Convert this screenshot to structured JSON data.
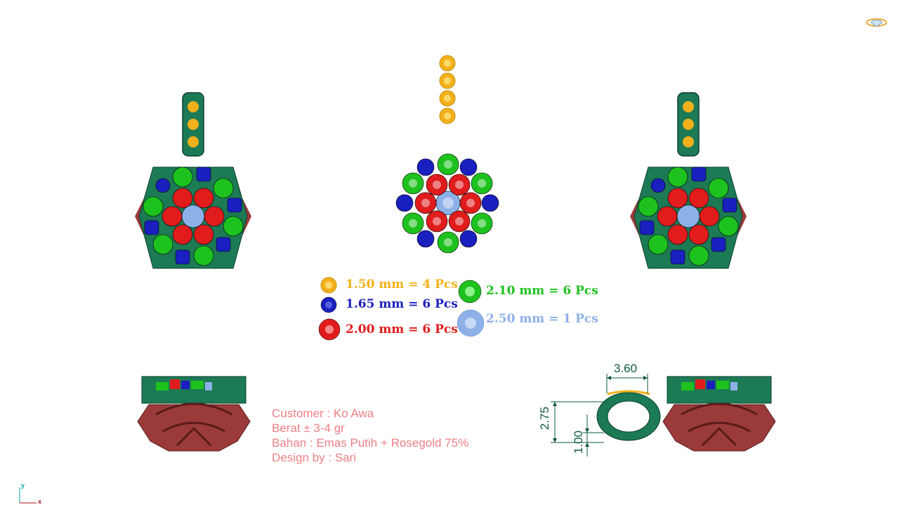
{
  "legend": [
    {
      "label": "1.50 mm = 4 Pcs",
      "color": "#f2b11c",
      "stone": "gold-stone"
    },
    {
      "label": "1.65 mm = 6 Pcs",
      "color": "#1a1fbf",
      "stone": "blue-stone"
    },
    {
      "label": "2.00 mm = 6 Pcs",
      "color": "#e01c1c",
      "stone": "red-stone"
    },
    {
      "label": "2.10 mm = 6 Pcs",
      "color": "#1ec21e",
      "stone": "green-stone"
    },
    {
      "label": "2.50 mm = 1 Pcs",
      "color": "#8db0e8",
      "stone": "lightblue-stone"
    }
  ],
  "info": {
    "customer": "Customer : Ko Awa",
    "weight": "Berat ± 3-4 gr",
    "material": "Bahan : Emas Putih + Rosegold 75%",
    "designer": "Design by : Sari"
  },
  "dimensions": {
    "width": "3.60",
    "height": "2.75",
    "thickness": "1.00"
  },
  "axis": {
    "x": "x",
    "y": "y"
  },
  "colors": {
    "metal_green": "#1c7a55",
    "rose_gold": "#9b3a3a",
    "dimension": "#0d5a3f",
    "info_text": "#ee7f83"
  }
}
